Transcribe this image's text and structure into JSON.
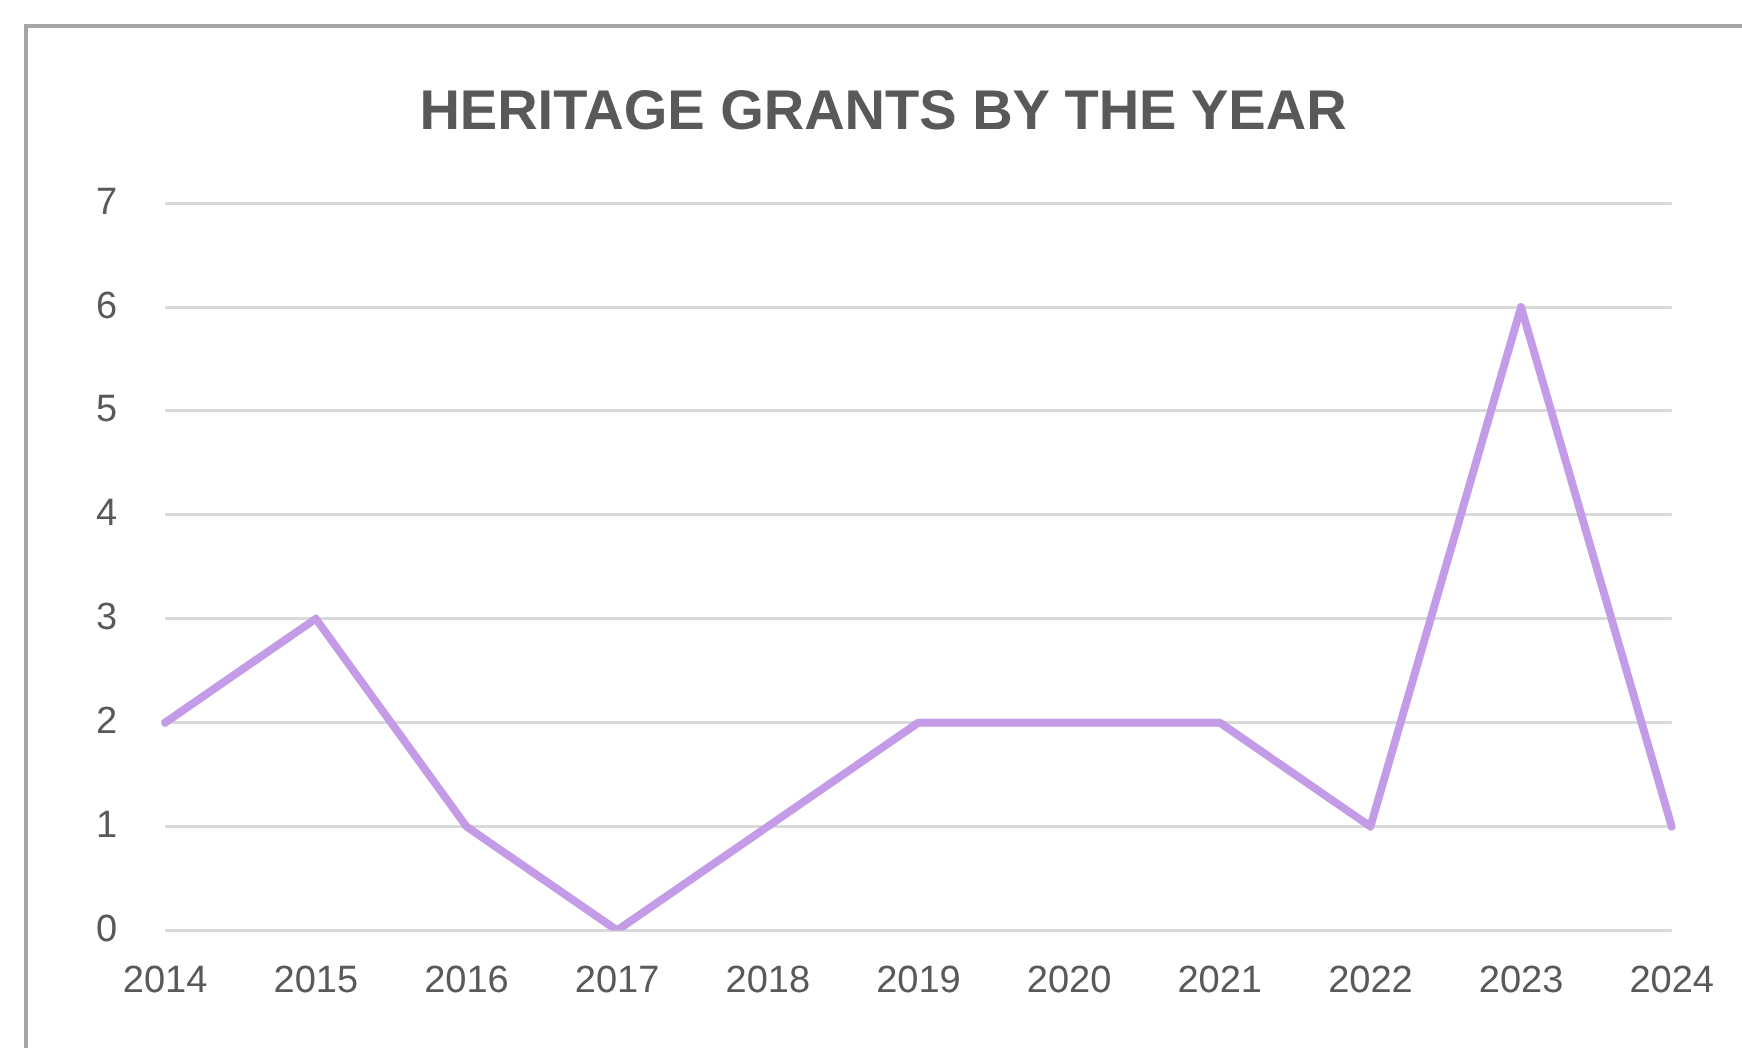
{
  "chart_data": {
    "type": "line",
    "title": "HERITAGE GRANTS BY THE YEAR",
    "categories": [
      "2014",
      "2015",
      "2016",
      "2017",
      "2018",
      "2019",
      "2020",
      "2021",
      "2022",
      "2023",
      "2024"
    ],
    "series": [
      {
        "color": "#c39be6",
        "values": [
          2,
          3,
          1,
          0,
          1,
          2,
          2,
          2,
          1,
          6,
          1
        ]
      }
    ],
    "ylim": [
      0,
      7
    ],
    "yticks": [
      0,
      1,
      2,
      3,
      4,
      5,
      6,
      7
    ],
    "grid": "y",
    "legend": false,
    "marker": "none",
    "line_style": "solid"
  }
}
